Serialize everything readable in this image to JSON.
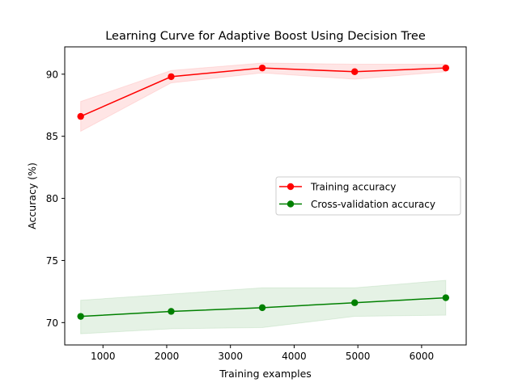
{
  "chart_data": {
    "type": "line",
    "title": "Learning Curve for Adaptive Boost Using Decision Tree",
    "xlabel": "Training examples",
    "ylabel": "Accuracy (%)",
    "xlim": [
      400,
      6700
    ],
    "ylim": [
      68.2,
      92.2
    ],
    "xticks": [
      1000,
      2000,
      3000,
      4000,
      5000,
      6000
    ],
    "yticks": [
      70,
      75,
      80,
      85,
      90
    ],
    "x": [
      650,
      2070,
      3500,
      4950,
      6380
    ],
    "series": [
      {
        "name": "Training accuracy",
        "color": "#ff0000",
        "marker": "circle",
        "values": [
          86.6,
          89.8,
          90.5,
          90.2,
          90.5
        ],
        "band_upper": [
          87.8,
          90.3,
          90.9,
          90.8,
          90.8
        ],
        "band_lower": [
          85.4,
          89.3,
          90.1,
          89.6,
          90.2
        ]
      },
      {
        "name": "Cross-validation accuracy",
        "color": "#008000",
        "marker": "circle",
        "values": [
          70.5,
          70.9,
          71.2,
          71.6,
          72.0
        ],
        "band_upper": [
          71.8,
          72.3,
          72.8,
          72.8,
          73.4
        ],
        "band_lower": [
          69.1,
          69.5,
          69.6,
          70.5,
          70.6
        ]
      }
    ],
    "grid": false,
    "legend_position": "center-right"
  }
}
